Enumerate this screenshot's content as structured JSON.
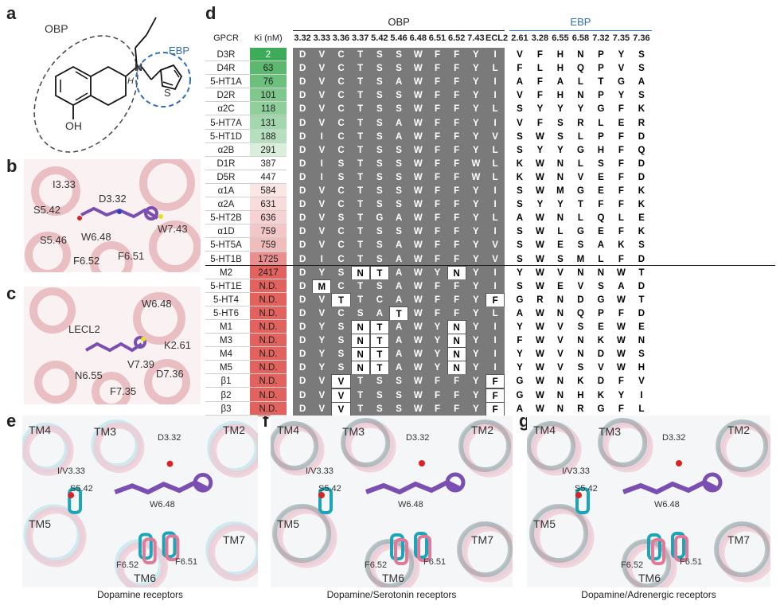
{
  "panels": {
    "a": "a",
    "b": "b",
    "c": "c",
    "d": "d",
    "e": "e",
    "f": "f",
    "g": "g"
  },
  "panel_a": {
    "obp_label": "OBP",
    "ebp_label": "EBP",
    "atom_n": "N",
    "atom_h": "H",
    "atom_s": "S",
    "atom_oh": "OH"
  },
  "panel_b": {
    "labels": [
      "I3.33",
      "D3.32",
      "S5.42",
      "W7.43",
      "W6.48",
      "S5.46",
      "F6.52",
      "F6.51"
    ]
  },
  "panel_c": {
    "labels": [
      "W6.48",
      "LECL2",
      "K2.61",
      "V7.39",
      "N6.55",
      "D7.36",
      "F7.35"
    ]
  },
  "panel_e": {
    "labels": [
      "TM4",
      "TM3",
      "D3.32",
      "TM2",
      "I/V3.33",
      "S5.42",
      "W6.48",
      "TM5",
      "F6.52",
      "F6.51",
      "TM7",
      "TM6"
    ],
    "caption": "Dopamine receptors"
  },
  "panel_f": {
    "labels": [
      "TM4",
      "TM3",
      "D3.32",
      "TM2",
      "I/V3.33",
      "S5.42",
      "W6.48",
      "TM5",
      "F6.52",
      "F6.51",
      "TM7",
      "TM6"
    ],
    "caption": "Dopamine/Serotonin receptors"
  },
  "panel_g": {
    "labels": [
      "TM4",
      "TM3",
      "D3.32",
      "TM2",
      "I/V3.33",
      "S5.42",
      "W6.48",
      "TM5",
      "F6.52",
      "F6.51",
      "TM7",
      "TM6"
    ],
    "caption": "Dopamine/Adrenergic receptors"
  },
  "table": {
    "group_obp": "OBP",
    "group_ebp": "EBP",
    "col_gpcr": "GPCR",
    "col_ki": "Ki (nM)",
    "obp_positions": [
      "3.32",
      "3.33",
      "3.36",
      "3.37",
      "5.42",
      "5.46",
      "6.48",
      "6.51",
      "6.52",
      "7.43",
      "ECL2"
    ],
    "ebp_positions": [
      "2.61",
      "3.28",
      "6.55",
      "6.58",
      "7.32",
      "7.35",
      "7.36"
    ],
    "rows": [
      {
        "name": "D3R",
        "ki": "2",
        "obp": [
          "D",
          "V",
          "C",
          "T",
          "S",
          "S",
          "W",
          "F",
          "F",
          "Y",
          "I"
        ],
        "ebp": [
          "V",
          "F",
          "H",
          "N",
          "P",
          "Y",
          "S"
        ]
      },
      {
        "name": "D4R",
        "ki": "63",
        "obp": [
          "D",
          "V",
          "C",
          "T",
          "S",
          "S",
          "W",
          "F",
          "F",
          "Y",
          "L"
        ],
        "ebp": [
          "F",
          "L",
          "H",
          "Q",
          "P",
          "V",
          "S"
        ]
      },
      {
        "name": "5-HT1A",
        "ki": "76",
        "obp": [
          "D",
          "V",
          "C",
          "T",
          "S",
          "A",
          "W",
          "F",
          "F",
          "Y",
          "I"
        ],
        "ebp": [
          "A",
          "F",
          "A",
          "L",
          "T",
          "G",
          "A"
        ]
      },
      {
        "name": "D2R",
        "ki": "101",
        "obp": [
          "D",
          "V",
          "C",
          "T",
          "S",
          "S",
          "W",
          "F",
          "F",
          "Y",
          "I"
        ],
        "ebp": [
          "V",
          "F",
          "H",
          "N",
          "P",
          "Y",
          "S"
        ]
      },
      {
        "name": "α2C",
        "ki": "118",
        "obp": [
          "D",
          "V",
          "C",
          "T",
          "S",
          "S",
          "W",
          "F",
          "F",
          "Y",
          "L"
        ],
        "ebp": [
          "S",
          "Y",
          "Y",
          "Y",
          "G",
          "F",
          "K"
        ]
      },
      {
        "name": "5-HT7A",
        "ki": "131",
        "obp": [
          "D",
          "V",
          "C",
          "T",
          "S",
          "A",
          "W",
          "F",
          "F",
          "Y",
          "I"
        ],
        "ebp": [
          "V",
          "F",
          "S",
          "R",
          "L",
          "E",
          "R"
        ]
      },
      {
        "name": "5-HT1D",
        "ki": "188",
        "obp": [
          "D",
          "I",
          "C",
          "T",
          "S",
          "A",
          "W",
          "F",
          "F",
          "Y",
          "V"
        ],
        "ebp": [
          "S",
          "W",
          "S",
          "L",
          "P",
          "F",
          "D"
        ]
      },
      {
        "name": "α2B",
        "ki": "291",
        "obp": [
          "D",
          "V",
          "C",
          "T",
          "S",
          "S",
          "W",
          "F",
          "F",
          "Y",
          "L"
        ],
        "ebp": [
          "S",
          "Y",
          "Y",
          "G",
          "H",
          "F",
          "Q"
        ]
      },
      {
        "name": "D1R",
        "ki": "387",
        "obp": [
          "D",
          "I",
          "S",
          "T",
          "S",
          "S",
          "W",
          "F",
          "F",
          "W",
          "L"
        ],
        "ebp": [
          "K",
          "W",
          "N",
          "L",
          "S",
          "F",
          "D"
        ]
      },
      {
        "name": "D5R",
        "ki": "447",
        "obp": [
          "D",
          "I",
          "S",
          "T",
          "S",
          "S",
          "W",
          "F",
          "F",
          "W",
          "L"
        ],
        "ebp": [
          "K",
          "W",
          "N",
          "V",
          "E",
          "F",
          "D"
        ]
      },
      {
        "name": "α1A",
        "ki": "584",
        "obp": [
          "D",
          "V",
          "C",
          "T",
          "S",
          "S",
          "W",
          "F",
          "F",
          "Y",
          "I"
        ],
        "ebp": [
          "S",
          "W",
          "M",
          "G",
          "E",
          "F",
          "K"
        ]
      },
      {
        "name": "α2A",
        "ki": "631",
        "obp": [
          "D",
          "V",
          "C",
          "T",
          "S",
          "S",
          "W",
          "F",
          "F",
          "Y",
          "I"
        ],
        "ebp": [
          "S",
          "Y",
          "Y",
          "T",
          "F",
          "F",
          "K"
        ]
      },
      {
        "name": "5-HT2B",
        "ki": "636",
        "obp": [
          "D",
          "V",
          "S",
          "T",
          "G",
          "A",
          "W",
          "F",
          "F",
          "Y",
          "L"
        ],
        "ebp": [
          "A",
          "W",
          "N",
          "L",
          "Q",
          "L",
          "E"
        ]
      },
      {
        "name": "α1D",
        "ki": "759",
        "obp": [
          "D",
          "V",
          "C",
          "T",
          "S",
          "S",
          "W",
          "F",
          "F",
          "Y",
          "I"
        ],
        "ebp": [
          "S",
          "W",
          "L",
          "G",
          "E",
          "F",
          "K"
        ]
      },
      {
        "name": "5-HT5A",
        "ki": "759",
        "obp": [
          "D",
          "V",
          "C",
          "T",
          "S",
          "A",
          "W",
          "F",
          "F",
          "Y",
          "V"
        ],
        "ebp": [
          "S",
          "W",
          "E",
          "S",
          "A",
          "K",
          "S"
        ]
      },
      {
        "name": "5-HT1B",
        "ki": "1725",
        "obp": [
          "D",
          "I",
          "C",
          "T",
          "S",
          "A",
          "W",
          "F",
          "F",
          "Y",
          "V"
        ],
        "ebp": [
          "S",
          "W",
          "S",
          "M",
          "L",
          "F",
          "D"
        ]
      },
      {
        "name": "M2",
        "ki": "2417",
        "obp": [
          "D",
          "Y",
          "S",
          "N",
          "T",
          "A",
          "W",
          "Y",
          "N",
          "Y",
          "I"
        ],
        "ebp": [
          "Y",
          "W",
          "V",
          "N",
          "N",
          "W",
          "T"
        ],
        "hi": [
          3,
          4,
          8
        ]
      },
      {
        "name": "5-HT1E",
        "ki": "N.D.",
        "obp": [
          "D",
          "M",
          "C",
          "T",
          "S",
          "A",
          "W",
          "F",
          "F",
          "Y",
          "I"
        ],
        "ebp": [
          "S",
          "W",
          "E",
          "V",
          "S",
          "A",
          "D"
        ],
        "hi": [
          1
        ]
      },
      {
        "name": "5-HT4",
        "ki": "N.D.",
        "obp": [
          "D",
          "V",
          "T",
          "T",
          "C",
          "A",
          "W",
          "F",
          "F",
          "Y",
          "F"
        ],
        "ebp": [
          "G",
          "R",
          "N",
          "D",
          "G",
          "W",
          "T"
        ],
        "hi": [
          2,
          10
        ]
      },
      {
        "name": "5-HT6",
        "ki": "N.D.",
        "obp": [
          "D",
          "V",
          "C",
          "S",
          "A",
          "T",
          "W",
          "F",
          "F",
          "Y",
          "L"
        ],
        "ebp": [
          "A",
          "W",
          "N",
          "Q",
          "P",
          "F",
          "D"
        ],
        "hi": [
          5
        ]
      },
      {
        "name": "M1",
        "ki": "N.D.",
        "obp": [
          "D",
          "Y",
          "S",
          "N",
          "T",
          "A",
          "W",
          "Y",
          "N",
          "Y",
          "I"
        ],
        "ebp": [
          "Y",
          "W",
          "V",
          "S",
          "E",
          "W",
          "E"
        ],
        "hi": [
          3,
          4,
          8
        ]
      },
      {
        "name": "M3",
        "ki": "N.D.",
        "obp": [
          "D",
          "Y",
          "S",
          "N",
          "T",
          "A",
          "W",
          "Y",
          "N",
          "Y",
          "I"
        ],
        "ebp": [
          "F",
          "W",
          "V",
          "N",
          "K",
          "W",
          "N"
        ],
        "hi": [
          3,
          4,
          8
        ]
      },
      {
        "name": "M4",
        "ki": "N.D.",
        "obp": [
          "D",
          "Y",
          "S",
          "N",
          "T",
          "A",
          "W",
          "Y",
          "N",
          "Y",
          "I"
        ],
        "ebp": [
          "Y",
          "W",
          "V",
          "N",
          "D",
          "W",
          "S"
        ],
        "hi": [
          3,
          4,
          8
        ]
      },
      {
        "name": "M5",
        "ki": "N.D.",
        "obp": [
          "D",
          "Y",
          "S",
          "N",
          "T",
          "A",
          "W",
          "Y",
          "N",
          "Y",
          "I"
        ],
        "ebp": [
          "Y",
          "W",
          "V",
          "S",
          "V",
          "W",
          "H"
        ],
        "hi": [
          3,
          4,
          8
        ]
      },
      {
        "name": "β1",
        "ki": "N.D.",
        "obp": [
          "D",
          "V",
          "V",
          "T",
          "S",
          "S",
          "W",
          "F",
          "F",
          "Y",
          "F"
        ],
        "ebp": [
          "G",
          "W",
          "N",
          "K",
          "D",
          "F",
          "V"
        ],
        "hi": [
          2,
          10
        ]
      },
      {
        "name": "β2",
        "ki": "N.D.",
        "obp": [
          "D",
          "V",
          "V",
          "T",
          "S",
          "S",
          "W",
          "F",
          "F",
          "Y",
          "F"
        ],
        "ebp": [
          "G",
          "W",
          "N",
          "H",
          "K",
          "Y",
          "I"
        ],
        "hi": [
          2,
          10
        ]
      },
      {
        "name": "β3",
        "ki": "N.D.",
        "obp": [
          "D",
          "V",
          "V",
          "T",
          "S",
          "S",
          "W",
          "F",
          "F",
          "Y",
          "F"
        ],
        "ebp": [
          "A",
          "W",
          "N",
          "R",
          "G",
          "F",
          "L"
        ],
        "hi": [
          2,
          10
        ]
      }
    ],
    "ki_colors": [
      "#3dab5a",
      "#5db86f",
      "#6cbf7c",
      "#7fc78c",
      "#8fcf9b",
      "#a3d7ad",
      "#b5dfbd",
      "#d9efdc",
      "#ffffff",
      "#ffffff",
      "#fbe5e5",
      "#f8dcdc",
      "#f6d2d2",
      "#f3c7c7",
      "#f0bcbc",
      "#e98f8f",
      "#e2625e"
    ]
  },
  "colors": {
    "obp_accent": "#222222",
    "ebp_accent": "#2f6fb5",
    "obp_cell": "#7a7a7a",
    "nd_cell": "#e2625e"
  }
}
